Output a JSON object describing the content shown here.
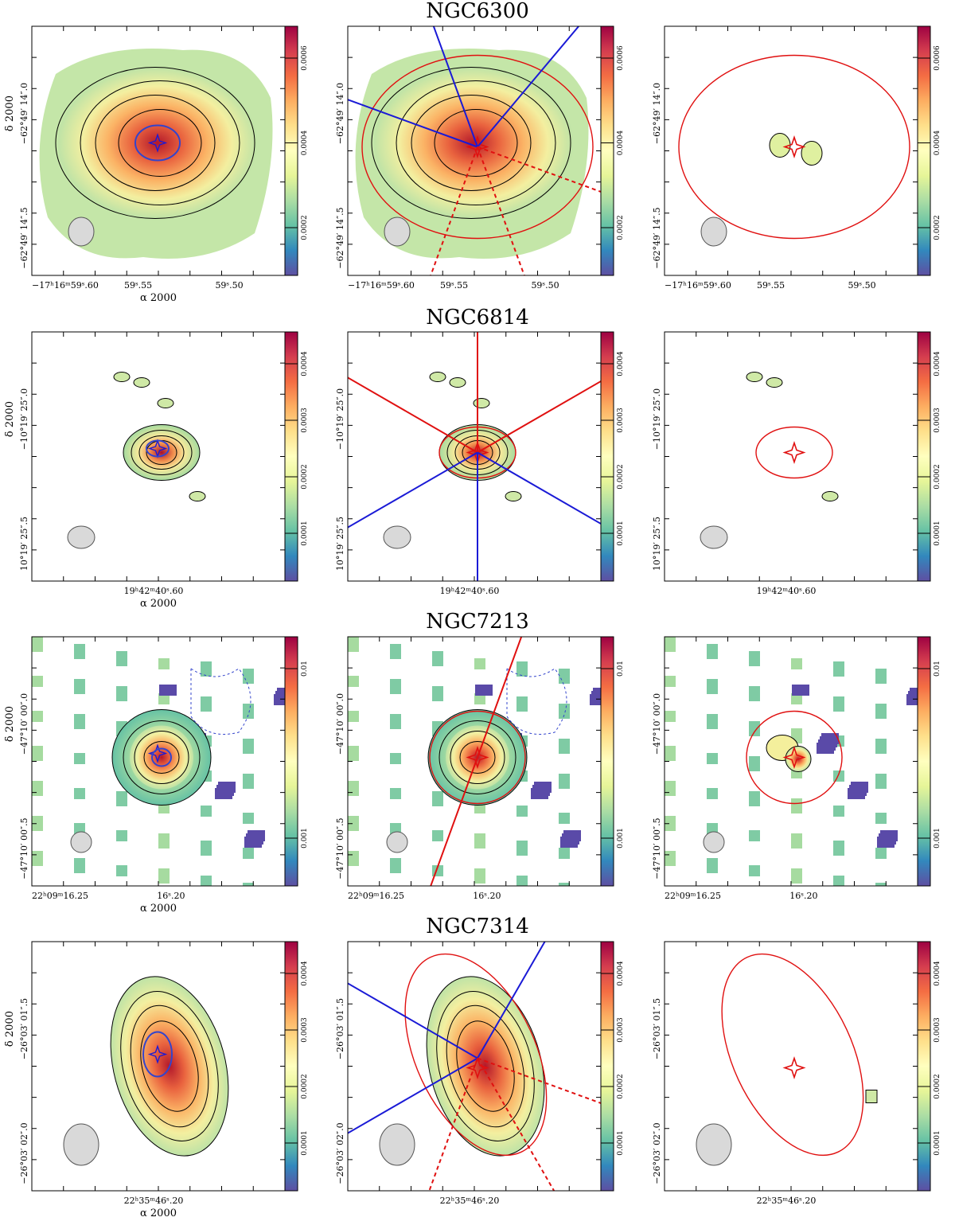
{
  "figure": {
    "rows": [
      {
        "name": "NGC6300",
        "ra_ticks": [
          "−17ʰ16ᵐ59ˢ.60",
          "59ˢ.55",
          "59ˢ.50"
        ],
        "dec_ticks": [
          "−62°49′ 14″.0",
          "−62°49′ 14″.5"
        ],
        "colorbar_ticks": [
          "0.0006",
          "0.0004",
          "0.0002"
        ],
        "colorbar_scale": "linear",
        "panels": [
          {
            "kind": "map"
          },
          {
            "kind": "model",
            "axes_colors": [
              "blue",
              "red-dashed"
            ],
            "ellipse": true
          },
          {
            "kind": "residual",
            "ellipse": true
          }
        ]
      },
      {
        "name": "NGC6814",
        "ra_ticks": [
          "19ʰ42ᵐ40ˢ.60"
        ],
        "dec_ticks": [
          "−10°19′ 25″.0",
          "10°19′ 25″.5"
        ],
        "colorbar_ticks": [
          "0.0004",
          "0.0003",
          "0.0002",
          "0.0001"
        ],
        "colorbar_scale": "linear",
        "panels": [
          {
            "kind": "map"
          },
          {
            "kind": "model",
            "axes_colors": [
              "red",
              "blue"
            ],
            "ellipse": true
          },
          {
            "kind": "residual",
            "ellipse": true
          }
        ]
      },
      {
        "name": "NGC7213",
        "ra_ticks": [
          "22ʰ09ᵐ16.25",
          "16ˢ.20"
        ],
        "dec_ticks": [
          "−47°10′ 00″.0",
          "−47°10′ 00″.5"
        ],
        "colorbar_ticks": [
          "0.01",
          "0.001"
        ],
        "colorbar_scale": "log",
        "panels": [
          {
            "kind": "map"
          },
          {
            "kind": "model",
            "axes_colors": [
              "red"
            ],
            "ellipse": true
          },
          {
            "kind": "residual",
            "ellipse": true
          }
        ]
      },
      {
        "name": "NGC7314",
        "ra_ticks": [
          "22ʰ35ᵐ46ˢ.20"
        ],
        "dec_ticks": [
          "−26°03′ 01″.5",
          "−26°03′ 02″.0"
        ],
        "colorbar_ticks": [
          "0.0004",
          "0.0003",
          "0.0002",
          "0.0001"
        ],
        "colorbar_scale": "linear",
        "panels": [
          {
            "kind": "map"
          },
          {
            "kind": "model",
            "axes_colors": [
              "blue",
              "red-dashed"
            ],
            "ellipse": true
          },
          {
            "kind": "residual",
            "ellipse": true
          }
        ]
      }
    ],
    "xlabel": "α 2000",
    "ylabel": "δ 2000",
    "colors": {
      "contour": "#000000",
      "negative_contour": "#3344cc",
      "fit_ellipse": "#e01010",
      "axis_blue": "#1a1ad6",
      "axis_red": "#e01010",
      "beam_fill": "#d9d9d9",
      "negative_pixel": "#5a4aa8"
    }
  }
}
